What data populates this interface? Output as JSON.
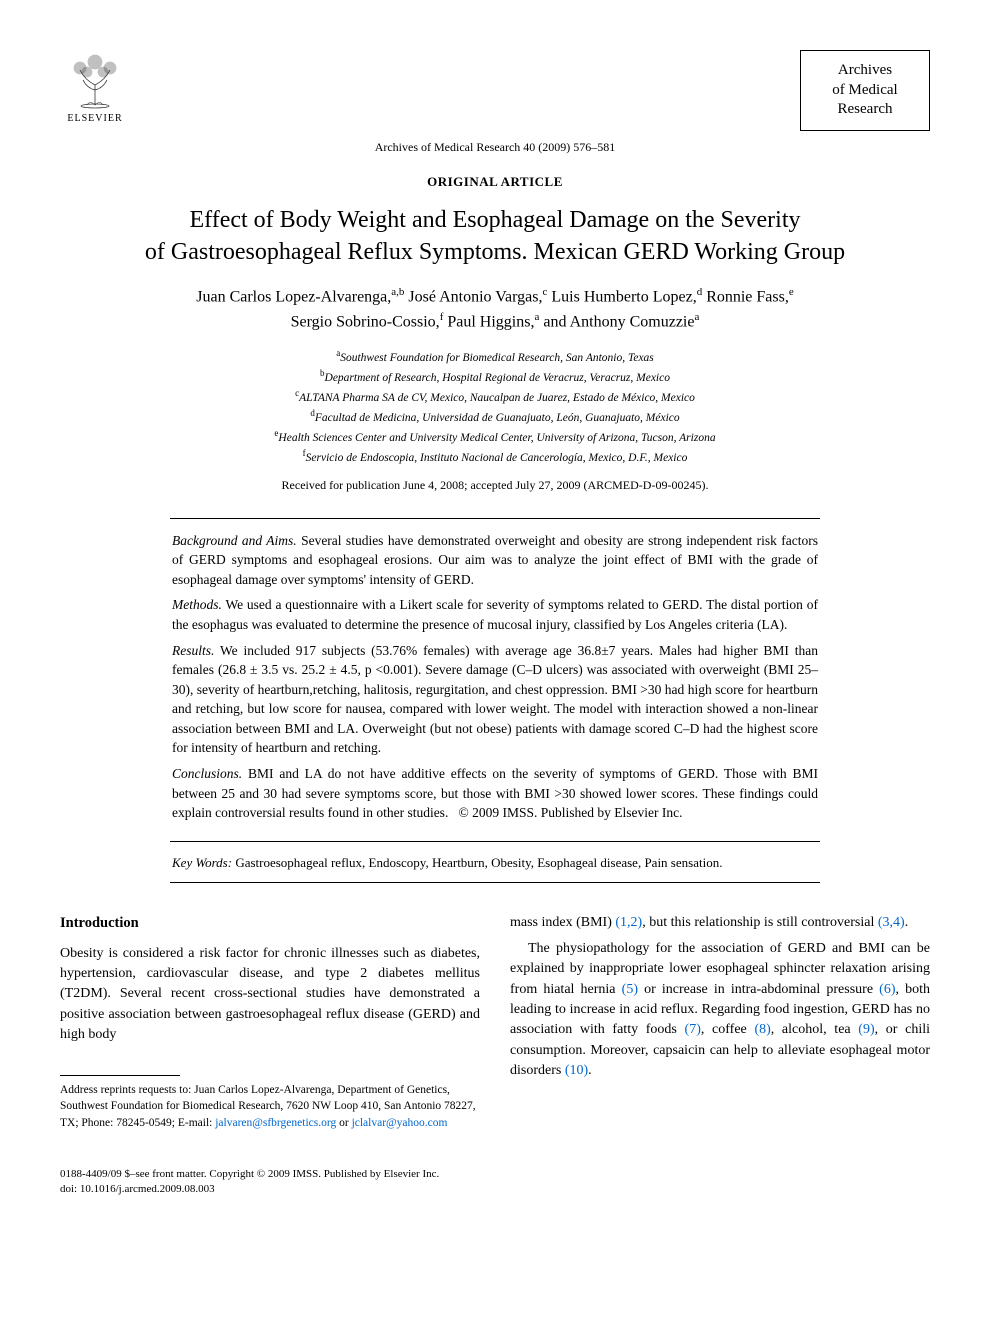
{
  "publisher": {
    "name": "ELSEVIER"
  },
  "journal_box": {
    "line1": "Archives",
    "line2": "of Medical",
    "line3": "Research"
  },
  "citation": "Archives of Medical Research 40 (2009) 576–581",
  "article_type": "ORIGINAL ARTICLE",
  "title_line1": "Effect of Body Weight and Esophageal Damage on the Severity",
  "title_line2": "of Gastroesophageal Reflux Symptoms. Mexican GERD Working Group",
  "authors_html": "Juan Carlos Lopez-Alvarenga,<sup>a,b</sup> José Antonio Vargas,<sup>c</sup> Luis Humberto Lopez,<sup>d</sup> Ronnie Fass,<sup>e</sup><br>Sergio Sobrino-Cossio,<sup>f</sup> Paul Higgins,<sup>a</sup> and Anthony Comuzzie<sup>a</sup>",
  "affiliations": [
    {
      "sup": "a",
      "text": "Southwest Foundation for Biomedical Research, San Antonio, Texas"
    },
    {
      "sup": "b",
      "text": "Department of Research, Hospital Regional de Veracruz, Veracruz, Mexico"
    },
    {
      "sup": "c",
      "text": "ALTANA Pharma SA de CV, Mexico, Naucalpan de Juarez, Estado de México, Mexico"
    },
    {
      "sup": "d",
      "text": "Facultad de Medicina, Universidad de Guanajuato, León, Guanajuato, México"
    },
    {
      "sup": "e",
      "text": "Health Sciences Center and University Medical Center, University of Arizona, Tucson, Arizona"
    },
    {
      "sup": "f",
      "text": "Servicio de Endoscopia, Instituto Nacional de Cancerología, Mexico, D.F., Mexico"
    }
  ],
  "received": "Received for publication June 4, 2008; accepted July 27, 2009 (ARCMED-D-09-00245).",
  "abstract": {
    "background_label": "Background and Aims.",
    "background": "Several studies have demonstrated overweight and obesity are strong independent risk factors of GERD symptoms and esophageal erosions. Our aim was to analyze the joint effect of BMI with the grade of esophageal damage over symptoms' intensity of GERD.",
    "methods_label": "Methods.",
    "methods": "We used a questionnaire with a Likert scale for severity of symptoms related to GERD. The distal portion of the esophagus was evaluated to determine the presence of mucosal injury, classified by Los Angeles criteria (LA).",
    "results_label": "Results.",
    "results": "We included 917 subjects (53.76% females) with average age 36.8±7 years. Males had higher BMI than females (26.8 ± 3.5 vs. 25.2 ± 4.5, p <0.001). Severe damage (C–D ulcers) was associated with overweight (BMI 25–30), severity of heartburn,retching, halitosis, regurgitation, and chest oppression. BMI >30 had high score for heartburn and retching, but low score for nausea, compared with lower weight. The model with interaction showed a non-linear association between BMI and LA. Overweight (but not obese) patients with damage scored C–D had the highest score for intensity of heartburn and retching.",
    "conclusions_label": "Conclusions.",
    "conclusions": "BMI and LA do not have additive effects on the severity of symptoms of GERD. Those with BMI between 25 and 30 had severe symptoms score, but those with BMI >30 showed lower scores. These findings could explain controversial results found in other studies.",
    "copyright": "© 2009 IMSS. Published by Elsevier Inc."
  },
  "keywords_label": "Key Words:",
  "keywords": "Gastroesophageal reflux, Endoscopy, Heartburn, Obesity, Esophageal disease, Pain sensation.",
  "introduction": {
    "heading": "Introduction",
    "para1": "Obesity is considered a risk factor for chronic illnesses such as diabetes, hypertension, cardiovascular disease, and type 2 diabetes mellitus (T2DM). Several recent cross-sectional studies have demonstrated a positive association between gastroesophageal reflux disease (GERD) and high body",
    "para2_pre": "mass index (BMI) ",
    "ref12": "(1,2)",
    "para2_mid": ", but this relationship is still controversial ",
    "ref34": "(3,4)",
    "para2_post": ".",
    "para3_pre": "The physiopathology for the association of GERD and BMI can be explained by inappropriate lower esophageal sphincter relaxation arising from hiatal hernia ",
    "ref5": "(5)",
    "para3_mid1": " or increase in intra-abdominal pressure ",
    "ref6": "(6)",
    "para3_mid2": ", both leading to increase in acid reflux. Regarding food ingestion, GERD has no association with fatty foods ",
    "ref7": "(7)",
    "para3_mid3": ", coffee ",
    "ref8": "(8)",
    "para3_mid4": ", alcohol, tea ",
    "ref9": "(9)",
    "para3_mid5": ", or chili consumption. Moreover, capsaicin can help to alleviate esophageal motor disorders ",
    "ref10": "(10)",
    "para3_post": "."
  },
  "footnote": {
    "text": "Address reprints requests to: Juan Carlos Lopez-Alvarenga, Department of Genetics, Southwest Foundation for Biomedical Research, 7620 NW Loop 410, San Antonio 78227, TX; Phone: 78245-0549; E-mail: ",
    "email1": "jalvaren@sfbrgenetics.org",
    "or": " or ",
    "email2": "jclalvar@yahoo.com"
  },
  "footer": {
    "line1": "0188-4409/09 $–see front matter. Copyright © 2009 IMSS. Published by Elsevier Inc.",
    "line2": "doi: 10.1016/j.arcmed.2009.08.003"
  },
  "colors": {
    "link": "#0066cc",
    "text": "#000000",
    "background": "#ffffff"
  }
}
